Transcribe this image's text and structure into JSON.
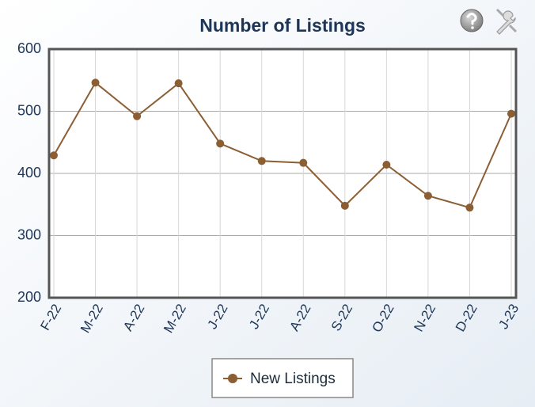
{
  "chart_data": {
    "type": "line",
    "title": "Number of Listings",
    "categories": [
      "F-22",
      "M-22",
      "A-22",
      "M-22",
      "J-22",
      "J-22",
      "A-22",
      "S-22",
      "O-22",
      "N-22",
      "D-22",
      "J-23"
    ],
    "series": [
      {
        "name": "New Listings",
        "color": "#8b5e34",
        "values": [
          429,
          546,
          492,
          545,
          448,
          420,
          417,
          348,
          414,
          364,
          345,
          496
        ]
      }
    ],
    "ylim": [
      200,
      600
    ],
    "yticks": [
      200,
      300,
      400,
      500,
      600
    ],
    "grid": true,
    "legend": "bottom"
  }
}
